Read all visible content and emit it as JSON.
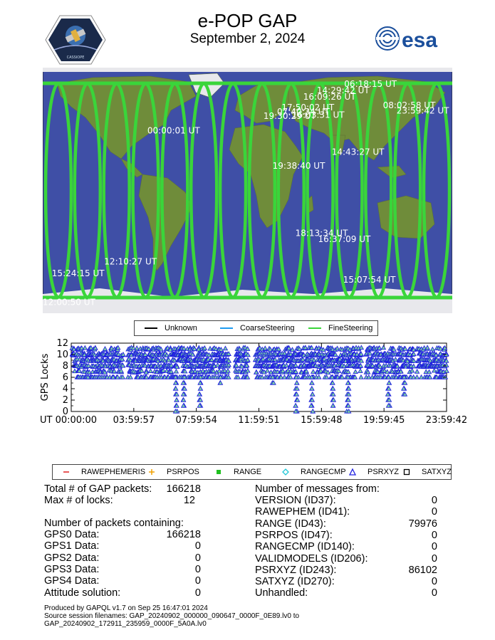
{
  "header": {
    "title": "e-POP GAP",
    "subtitle": "September 2, 2024",
    "esa_logo_text": "esa",
    "mission_logo_text": "e-POP CASSIOPE"
  },
  "map": {
    "labels": [
      {
        "text": "06:18:15 UT",
        "lon": 85,
        "lat": 80
      },
      {
        "text": "14:29:42 UT",
        "lon": 61,
        "lat": 74
      },
      {
        "text": "16:09:26 UT",
        "lon": 49,
        "lat": 68
      },
      {
        "text": "17:50:02 UT",
        "lon": 30,
        "lat": 58
      },
      {
        "text": "07:40:34 UT",
        "lon": 26,
        "lat": 54
      },
      {
        "text": "16:03:31 UT",
        "lon": 39,
        "lat": 51
      },
      {
        "text": "19:30:29 UT",
        "lon": 14,
        "lat": 50
      },
      {
        "text": "08:02:58 UT",
        "lon": 119,
        "lat": 60
      },
      {
        "text": "23:59:42 UT",
        "lon": 131,
        "lat": 55
      },
      {
        "text": "00:00:01 UT",
        "lon": -88,
        "lat": 36
      },
      {
        "text": "14:43:27 UT",
        "lon": 74,
        "lat": 16
      },
      {
        "text": "19:38:40 UT",
        "lon": 22,
        "lat": 3
      },
      {
        "text": "18:13:34 UT",
        "lon": 42,
        "lat": -60
      },
      {
        "text": "16:37:09 UT",
        "lon": 62,
        "lat": -66
      },
      {
        "text": "12:10:27 UT",
        "lon": -126,
        "lat": -87
      },
      {
        "text": "15:24:15 UT",
        "lon": -172,
        "lat": -98
      },
      {
        "text": "15:07:54 UT",
        "lon": 84,
        "lat": -104
      },
      {
        "text": "12:00:50 UT",
        "lon": -180,
        "lat": -125
      }
    ]
  },
  "legend_steering": {
    "items": [
      {
        "label": "Unknown",
        "color": "#000000"
      },
      {
        "label": "CoarseSteering",
        "color": "#1e9bf0"
      },
      {
        "label": "FineSteering",
        "color": "#3ad53a"
      }
    ]
  },
  "chart_data": {
    "type": "scatter",
    "title": "",
    "xlabel": "",
    "ylabel": "GPS Locks",
    "ylim": [
      0,
      12
    ],
    "yticks": [
      0,
      2,
      4,
      6,
      8,
      10,
      12
    ],
    "xlim": [
      0,
      86382
    ],
    "xtick_labels": [
      "UT 00:00:00",
      "03:59:57",
      "07:59:54",
      "11:59:51",
      "15:59:48",
      "19:59:45",
      "23:59:42"
    ],
    "marker_color": "#2020e0",
    "marker_fill": "#7ed6a0",
    "gaps_hours": [
      [
        3.35,
        3.6
      ],
      [
        10.1,
        10.45
      ],
      [
        11.3,
        11.75
      ],
      [
        18.55,
        18.85
      ],
      [
        21.9,
        22.05
      ]
    ],
    "dips": [
      {
        "t_hours": 1.05,
        "min": 6
      },
      {
        "t_hours": 2.7,
        "min": 6
      },
      {
        "t_hours": 4.8,
        "min": 6
      },
      {
        "t_hours": 6.7,
        "min": 0
      },
      {
        "t_hours": 7.2,
        "min": 1
      },
      {
        "t_hours": 8.25,
        "min": 1
      },
      {
        "t_hours": 14.4,
        "min": 0
      },
      {
        "t_hours": 15.4,
        "min": 0
      },
      {
        "t_hours": 16.7,
        "min": 1
      },
      {
        "t_hours": 17.7,
        "min": 0
      },
      {
        "t_hours": 20.3,
        "min": 1
      },
      {
        "t_hours": 21.3,
        "min": 3
      },
      {
        "t_hours": 9.55,
        "min": 5
      },
      {
        "t_hours": 12.9,
        "min": 5
      }
    ]
  },
  "legend_messages": {
    "items": [
      {
        "label": "RAWEPHEMERIS",
        "color": "#e02020",
        "symbol": "dash"
      },
      {
        "label": "PSRPOS",
        "color": "#f0a000",
        "symbol": "plus"
      },
      {
        "label": "RANGE",
        "color": "#20c020",
        "symbol": "square-x"
      },
      {
        "label": "RANGECMP",
        "color": "#20c8d8",
        "symbol": "diamond"
      },
      {
        "label": "PSRXYZ",
        "color": "#2020e0",
        "symbol": "triangle"
      },
      {
        "label": "SATXYZ",
        "color": "#000000",
        "symbol": "square"
      }
    ]
  },
  "stats_left": {
    "total_label": "Total # of GAP packets:",
    "total_value": "166218",
    "maxlocks_label": "Max # of locks:",
    "maxlocks_value": "12",
    "containing_heading": "Number of packets containing:",
    "rows": [
      {
        "label": "GPS0 Data:",
        "value": "166218"
      },
      {
        "label": "GPS1 Data:",
        "value": "0"
      },
      {
        "label": "GPS2 Data:",
        "value": "0"
      },
      {
        "label": "GPS3 Data:",
        "value": "0"
      },
      {
        "label": "GPS4 Data:",
        "value": "0"
      },
      {
        "label": "Attitude solution:",
        "value": "0"
      }
    ]
  },
  "stats_right": {
    "heading": "Number of messages from:",
    "rows": [
      {
        "label": "VERSION (ID37):",
        "value": "0"
      },
      {
        "label": "RAWEPHEM (ID41):",
        "value": "0"
      },
      {
        "label": "RANGE (ID43):",
        "value": "79976"
      },
      {
        "label": "PSRPOS (ID47):",
        "value": "0"
      },
      {
        "label": "RANGECMP (ID140):",
        "value": "0"
      },
      {
        "label": "VALIDMODELS (ID206):",
        "value": "0"
      },
      {
        "label": "PSRXYZ (ID243):",
        "value": "86102"
      },
      {
        "label": "SATXYZ (ID270):",
        "value": "0"
      },
      {
        "label": "Unhandled:",
        "value": "0"
      }
    ]
  },
  "footer": {
    "line1": "Produced by GAPQL v1.7 on Sep 25 16:47:01 2024",
    "line2": "Source session filenames: GAP_20240902_000000_090647_0000F_0E89.lv0 to",
    "line3": "GAP_20240902_172911_235959_0000F_5A0A.lv0"
  }
}
